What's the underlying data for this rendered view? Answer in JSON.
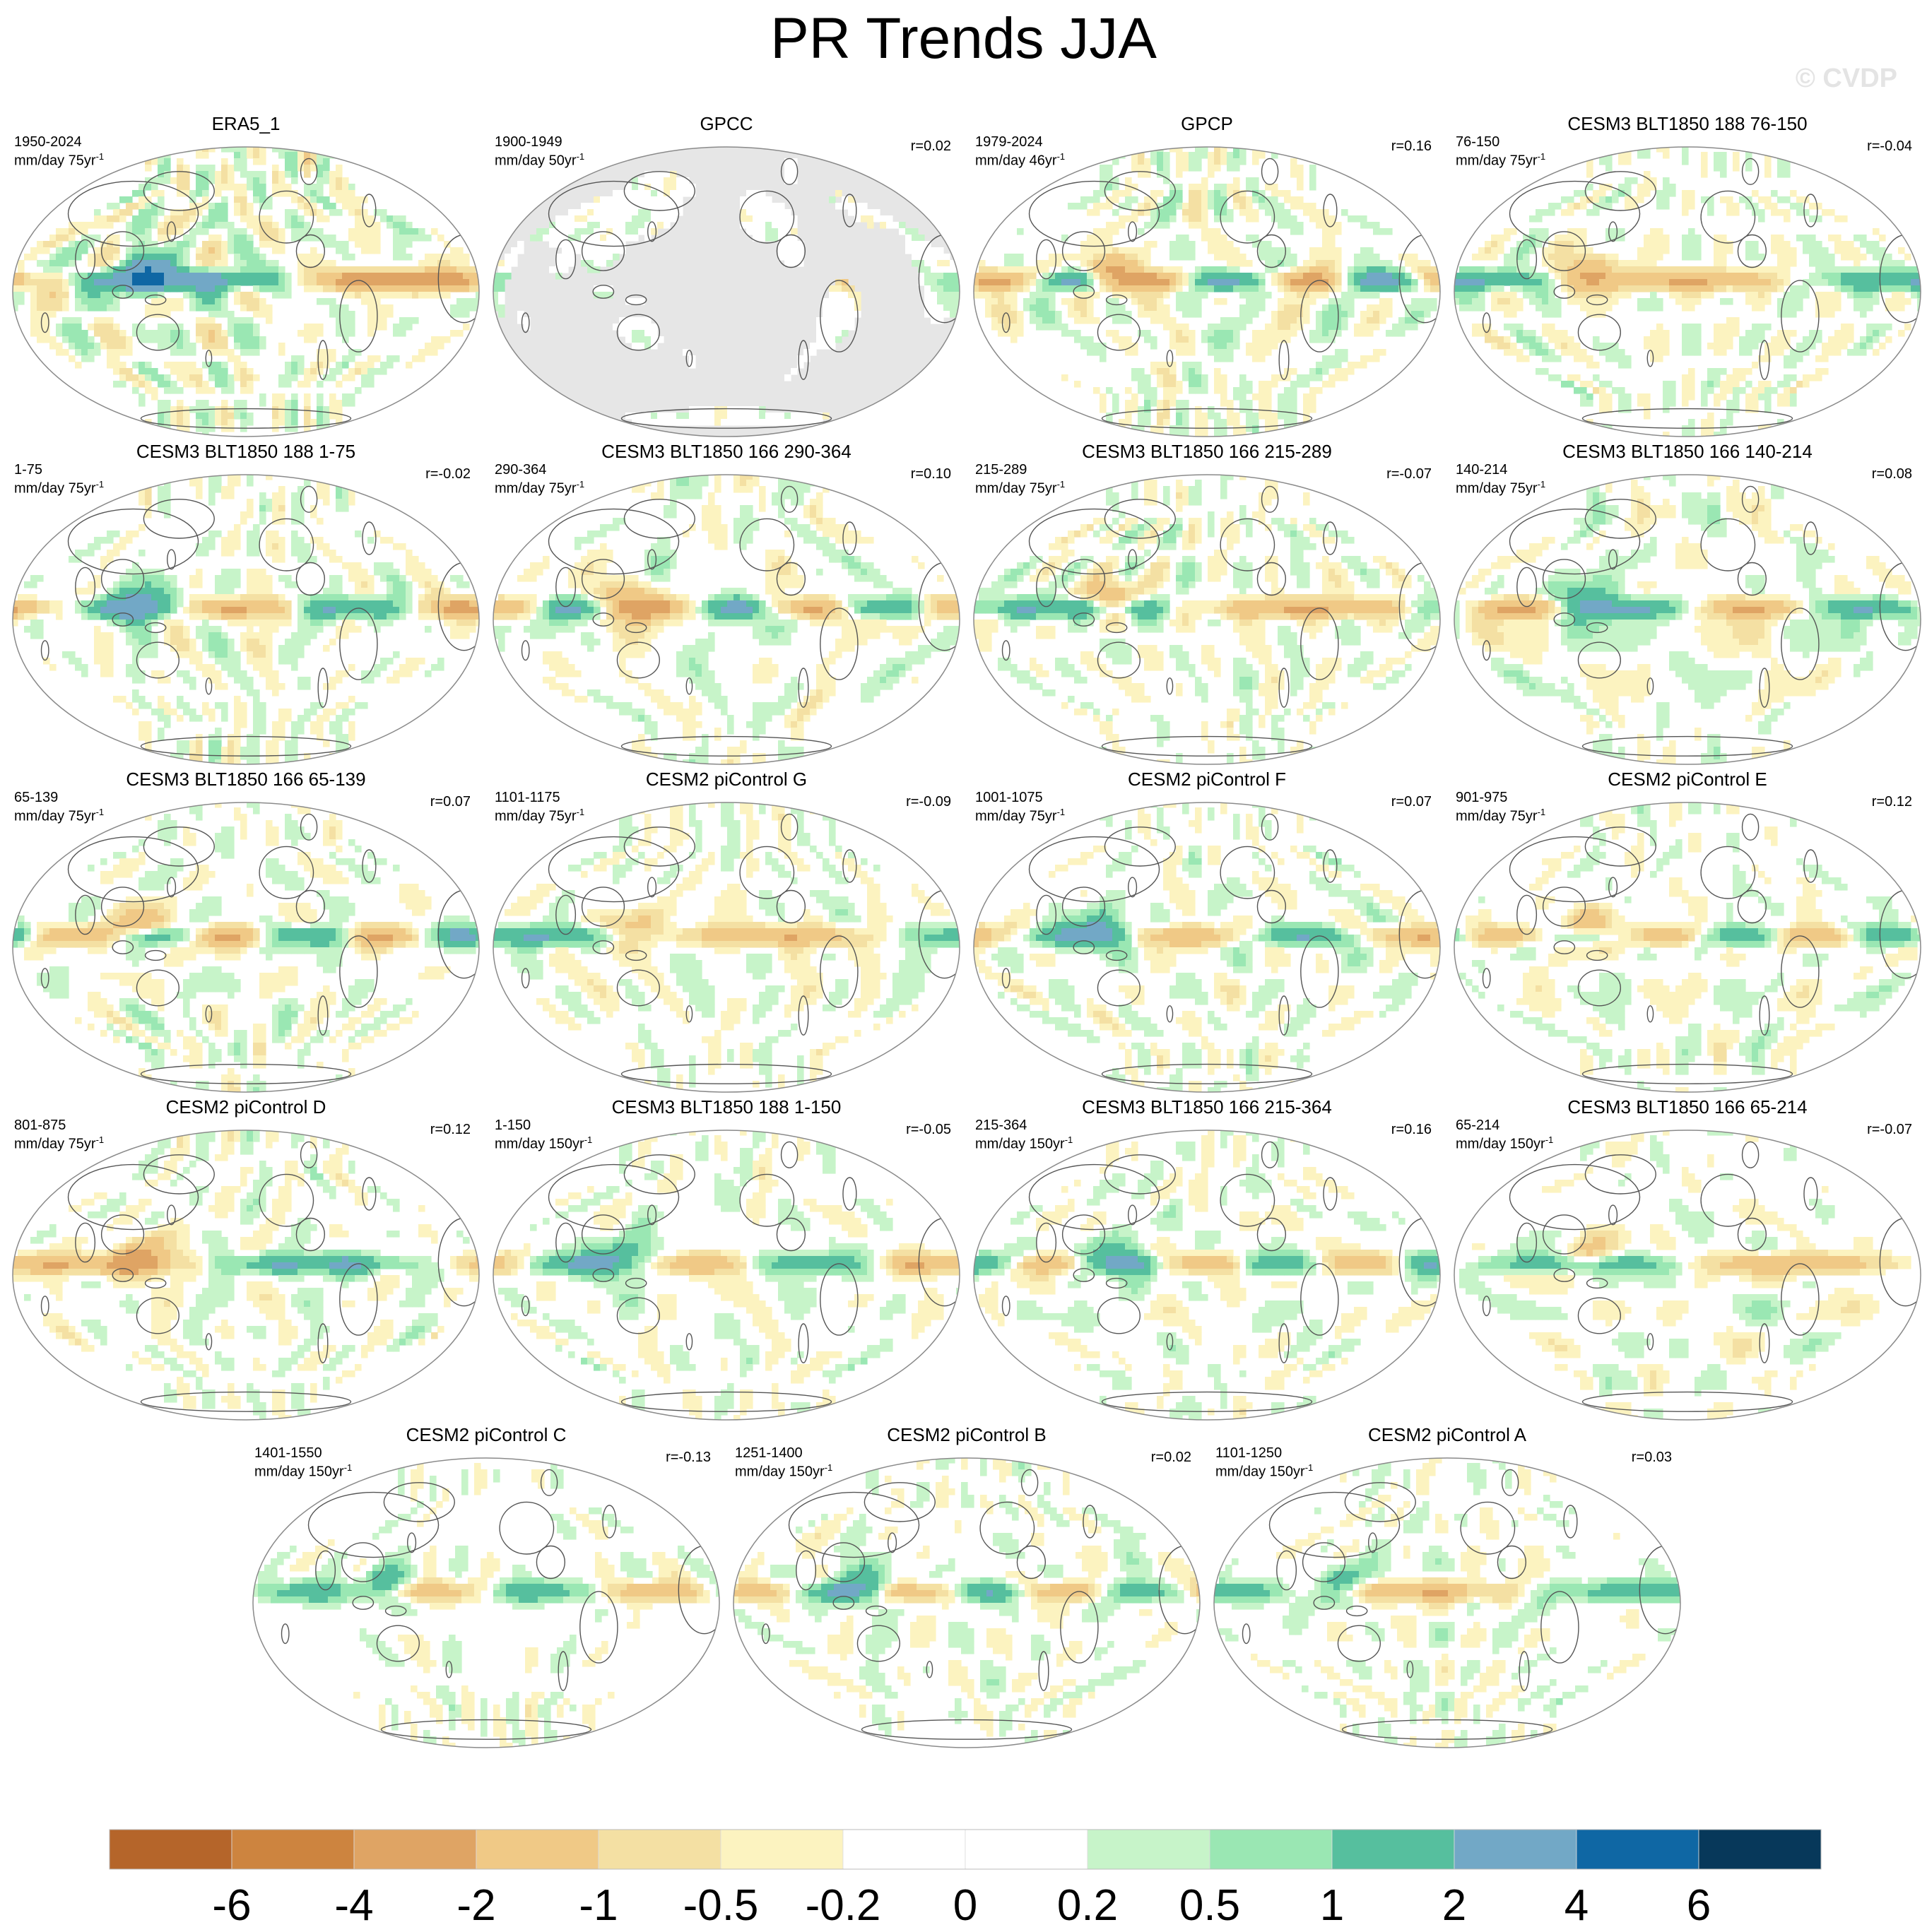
{
  "figure": {
    "title": "PR Trends JJA",
    "watermark": "© CVDP"
  },
  "colors": {
    "land_mask": "#e6e6e6",
    "coast": "#555555",
    "outline": "#8a8a8a"
  },
  "chart_data": {
    "type": "heatmap",
    "title": "PR Trends JJA",
    "projection": "Robinson, Pacific-centered",
    "variable": "precipitation trend (JJA)",
    "panels": [
      {
        "title": "ERA5_1",
        "years": "1950-2024",
        "units": "mm/day 75yr",
        "units_sup": "-1",
        "r": "",
        "pattern": 0,
        "amp": 1.35
      },
      {
        "title": "GPCC",
        "years": "1900-1949",
        "units": "mm/day 50yr",
        "units_sup": "-1",
        "r": "r=0.02",
        "pattern": 1,
        "amp": 0.6,
        "land_only": true
      },
      {
        "title": "GPCP",
        "years": "1979-2024",
        "units": "mm/day 46yr",
        "units_sup": "-1",
        "r": "r=0.16",
        "pattern": 2,
        "amp": 1.1
      },
      {
        "title": "CESM3 BLT1850 188 76-150",
        "years": "76-150",
        "units": "mm/day 75yr",
        "units_sup": "-1",
        "r": "r=-0.04",
        "pattern": 3,
        "amp": 0.9
      },
      {
        "title": "CESM3 BLT1850 188 1-75",
        "years": "1-75",
        "units": "mm/day 75yr",
        "units_sup": "-1",
        "r": "r=-0.02",
        "pattern": 4,
        "amp": 0.95
      },
      {
        "title": "CESM3 BLT1850 166 290-364",
        "years": "290-364",
        "units": "mm/day 75yr",
        "units_sup": "-1",
        "r": "r=0.10",
        "pattern": 5,
        "amp": 0.95
      },
      {
        "title": "CESM3 BLT1850 166 215-289",
        "years": "215-289",
        "units": "mm/day 75yr",
        "units_sup": "-1",
        "r": "r=-0.07",
        "pattern": 6,
        "amp": 0.95
      },
      {
        "title": "CESM3 BLT1850 166 140-214",
        "years": "140-214",
        "units": "mm/day 75yr",
        "units_sup": "-1",
        "r": "r=0.08",
        "pattern": 7,
        "amp": 0.95
      },
      {
        "title": "CESM3 BLT1850 166 65-139",
        "years": "65-139",
        "units": "mm/day 75yr",
        "units_sup": "-1",
        "r": "r=0.07",
        "pattern": 8,
        "amp": 0.9
      },
      {
        "title": "CESM2 piControl G",
        "years": "1101-1175",
        "units": "mm/day 75yr",
        "units_sup": "-1",
        "r": "r=-0.09",
        "pattern": 9,
        "amp": 0.85
      },
      {
        "title": "CESM2 piControl F",
        "years": "1001-1075",
        "units": "mm/day 75yr",
        "units_sup": "-1",
        "r": "r=0.07",
        "pattern": 10,
        "amp": 0.85
      },
      {
        "title": "CESM2 piControl E",
        "years": "901-975",
        "units": "mm/day 75yr",
        "units_sup": "-1",
        "r": "r=0.12",
        "pattern": 11,
        "amp": 0.85
      },
      {
        "title": "CESM2 piControl D",
        "years": "801-875",
        "units": "mm/day 75yr",
        "units_sup": "-1",
        "r": "r=0.12",
        "pattern": 12,
        "amp": 0.9
      },
      {
        "title": "CESM3 BLT1850 188 1-150",
        "years": "1-150",
        "units": "mm/day 150yr",
        "units_sup": "-1",
        "r": "r=-0.05",
        "pattern": 13,
        "amp": 0.8
      },
      {
        "title": "CESM3 BLT1850 166 215-364",
        "years": "215-364",
        "units": "mm/day 150yr",
        "units_sup": "-1",
        "r": "r=0.16",
        "pattern": 14,
        "amp": 0.8
      },
      {
        "title": "CESM3 BLT1850 166 65-214",
        "years": "65-214",
        "units": "mm/day 150yr",
        "units_sup": "-1",
        "r": "r=-0.07",
        "pattern": 15,
        "amp": 0.8
      },
      {
        "title": "CESM2 piControl C",
        "years": "1401-1550",
        "units": "mm/day 150yr",
        "units_sup": "-1",
        "r": "r=-0.13",
        "pattern": 16,
        "amp": 0.75
      },
      {
        "title": "CESM2 piControl B",
        "years": "1251-1400",
        "units": "mm/day 150yr",
        "units_sup": "-1",
        "r": "r=0.02",
        "pattern": 17,
        "amp": 0.8
      },
      {
        "title": "CESM2 piControl A",
        "years": "1101-1250",
        "units": "mm/day 150yr",
        "units_sup": "-1",
        "r": "r=0.03",
        "pattern": 18,
        "amp": 0.75
      }
    ],
    "colorbar": {
      "labels": [
        "-6",
        "-4",
        "-2",
        "-1",
        "-0.5",
        "-0.2",
        "0",
        "0.2",
        "0.5",
        "1",
        "2",
        "4",
        "6"
      ],
      "levels": [
        -6,
        -4,
        -2,
        -1,
        -0.5,
        -0.2,
        0,
        0.2,
        0.5,
        1,
        2,
        4,
        6
      ],
      "colors": [
        "#b5652a",
        "#cd843f",
        "#dfa464",
        "#f0c986",
        "#f4e0a3",
        "#fcf3c0",
        "#ffffff",
        "#ffffff",
        "#c7f4c9",
        "#9ae7b3",
        "#56bf9e",
        "#72a8c6",
        "#0f67a4",
        "#07385a"
      ]
    }
  }
}
